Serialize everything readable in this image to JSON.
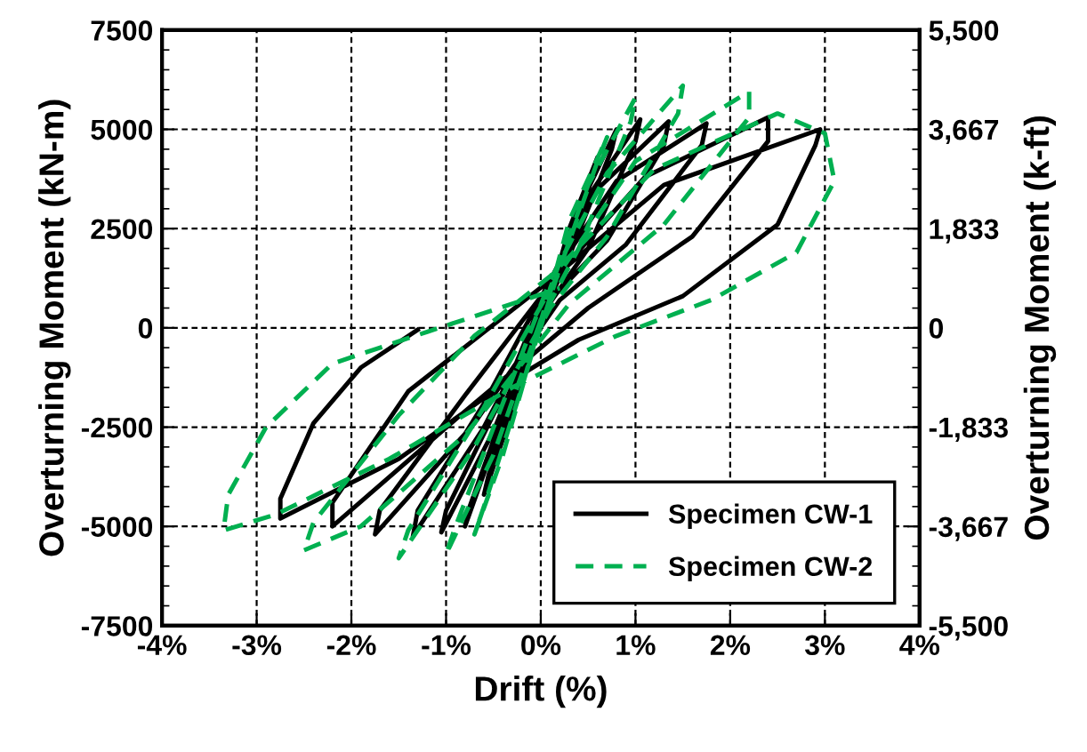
{
  "chart_data": {
    "type": "line",
    "xlabel": "Drift (%)",
    "ylabel": "Overturning Moment (kN-m)",
    "y2label": "Overturning Moment (k-ft)",
    "xlim": [
      -4,
      4
    ],
    "xticks": [
      {
        "value": -4,
        "label": "-4%"
      },
      {
        "value": -3,
        "label": "-3%"
      },
      {
        "value": -2,
        "label": "-2%"
      },
      {
        "value": -1,
        "label": "-1%"
      },
      {
        "value": 0,
        "label": "0%"
      },
      {
        "value": 1,
        "label": "1%"
      },
      {
        "value": 2,
        "label": "2%"
      },
      {
        "value": 3,
        "label": "3%"
      },
      {
        "value": 4,
        "label": "4%"
      }
    ],
    "ylim": [
      -7500,
      7500
    ],
    "yticks": [
      -7500,
      -5000,
      -2500,
      0,
      2500,
      5000,
      7500
    ],
    "y2lim": [
      -5500,
      5500
    ],
    "y2ticks": [
      {
        "value": -5500,
        "label": "-5,500"
      },
      {
        "value": -3667,
        "label": "-3,667"
      },
      {
        "value": -1833,
        "label": "-1,833"
      },
      0,
      {
        "value": 1833,
        "label": "1,833"
      },
      {
        "value": 3667,
        "label": "3,667"
      },
      {
        "value": 5500,
        "label": "5,500"
      }
    ],
    "grid": true,
    "legend": "bottom right",
    "marker": "none",
    "series": [
      {
        "name": "Specimen CW-1",
        "color": "#000000",
        "line_style": "solid",
        "x": [
          0,
          0.3,
          0.6,
          0.55,
          0.2,
          -0.1,
          -0.4,
          -0.6,
          -0.55,
          -0.2,
          0.1,
          0.4,
          0.8,
          0.75,
          0.3,
          -0.1,
          -0.5,
          -0.8,
          -0.75,
          -0.3,
          0.1,
          0.5,
          1.05,
          1.0,
          0.5,
          0,
          -0.5,
          -1.05,
          -1.0,
          -0.4,
          0.1,
          0.6,
          1.35,
          1.3,
          0.7,
          0.1,
          -0.6,
          -1.35,
          -1.3,
          -0.6,
          0.1,
          0.8,
          1.75,
          1.7,
          0.9,
          0.2,
          -0.7,
          -1.75,
          -1.7,
          -0.8,
          0.2,
          1.1,
          2.4,
          2.4,
          1.6,
          0.5,
          -0.8,
          -2.2,
          -2.2,
          -1.4,
          0.1,
          1.3,
          2.95,
          2.9,
          2.5,
          1.5,
          0.4,
          -0.5,
          -1.5,
          -2.75,
          -2.75,
          -2.4,
          -1.9,
          -1.3
        ],
        "values": [
          0,
          2500,
          4300,
          3800,
          1500,
          -500,
          -2800,
          -4200,
          -3700,
          -1200,
          800,
          3000,
          5000,
          4500,
          1800,
          -300,
          -3000,
          -5000,
          -4500,
          -1500,
          1000,
          3300,
          5250,
          4700,
          2000,
          300,
          -2600,
          -5150,
          -4600,
          -1700,
          1200,
          3500,
          5200,
          4600,
          2200,
          700,
          -2500,
          -5250,
          -4600,
          -1900,
          1200,
          3700,
          5150,
          4600,
          2100,
          700,
          -2400,
          -5200,
          -4600,
          -1700,
          1400,
          3800,
          5300,
          4700,
          2300,
          500,
          -2100,
          -5000,
          -4400,
          -1600,
          1200,
          3600,
          5000,
          4600,
          2600,
          800,
          -300,
          -1600,
          -3300,
          -4800,
          -4300,
          -2400,
          -1000,
          -50
        ]
      },
      {
        "name": "Specimen CW-2",
        "color": "#00b050",
        "line_style": "dashed",
        "x": [
          0,
          0.3,
          0.7,
          0.6,
          0.2,
          -0.1,
          -0.4,
          -0.7,
          -0.6,
          -0.2,
          0.1,
          0.5,
          1.0,
          0.95,
          0.4,
          0,
          -0.5,
          -1.0,
          -0.9,
          -0.4,
          0.1,
          0.7,
          1.5,
          1.45,
          0.7,
          0.1,
          -0.7,
          -1.5,
          -1.4,
          -0.6,
          0.2,
          1.0,
          2.2,
          2.2,
          1.3,
          0.3,
          -0.8,
          -1.9,
          -2.5,
          -2.4,
          -1.5,
          -0.7,
          0.1,
          1.2,
          2.5,
          3.0,
          3.1,
          2.7,
          1.8,
          0.8,
          -0.3,
          -1.6,
          -2.8,
          -3.35,
          -3.3,
          -2.9,
          -2.2,
          -1.2,
          0.2
        ],
        "values": [
          0,
          2700,
          4800,
          4200,
          1500,
          -700,
          -3200,
          -5200,
          -4500,
          -1500,
          1000,
          3600,
          5800,
          5200,
          2000,
          200,
          -3200,
          -5700,
          -5000,
          -1900,
          1200,
          3900,
          6100,
          5400,
          2300,
          500,
          -3000,
          -5800,
          -5100,
          -2000,
          1400,
          4200,
          5950,
          5300,
          2600,
          600,
          -2700,
          -5000,
          -5600,
          -4900,
          -2200,
          -200,
          1300,
          4000,
          5400,
          4900,
          3700,
          1900,
          700,
          -200,
          -1500,
          -3300,
          -4700,
          -5100,
          -4200,
          -2500,
          -900,
          -100,
          1000
        ]
      }
    ]
  }
}
